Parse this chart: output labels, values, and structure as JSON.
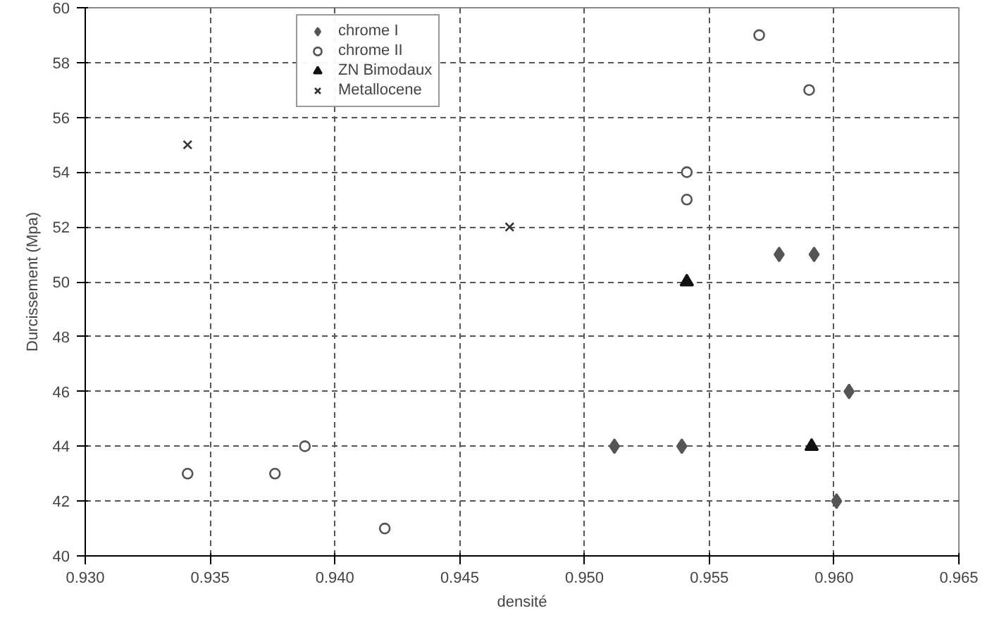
{
  "chart_data": {
    "type": "scatter",
    "xlabel": "densité",
    "ylabel": "Durcissement (Mpa)",
    "xlim": [
      0.93,
      0.965
    ],
    "xticks": [
      {
        "value": 0.93,
        "label": "0.930"
      },
      {
        "value": 0.935,
        "label": "0.935"
      },
      {
        "value": 0.94,
        "label": "0.940"
      },
      {
        "value": 0.945,
        "label": "0.945"
      },
      {
        "value": 0.95,
        "label": "0.950"
      },
      {
        "value": 0.955,
        "label": "0.955"
      },
      {
        "value": 0.96,
        "label": "0.960"
      },
      {
        "value": 0.965,
        "label": "0.965"
      }
    ],
    "ylim": [
      40,
      60
    ],
    "yticks": [
      40,
      42,
      44,
      46,
      48,
      50,
      52,
      54,
      56,
      58,
      60
    ],
    "grid": true,
    "legend": "top left",
    "series": [
      {
        "name": "chrome I",
        "marker": "diamond",
        "color": "#555555",
        "x": [
          0.9512,
          0.9539,
          0.9578,
          0.9592,
          0.9606,
          0.9601
        ],
        "values": [
          44,
          44,
          51,
          51,
          46,
          42
        ]
      },
      {
        "name": "chrome II",
        "marker": "circle",
        "color": "#555555",
        "x": [
          0.9341,
          0.9376,
          0.9388,
          0.942,
          0.9541,
          0.9541,
          0.957,
          0.959
        ],
        "values": [
          43,
          43,
          44,
          41,
          54,
          53,
          59,
          57
        ]
      },
      {
        "name": "ZN Bimodaux",
        "marker": "triangle",
        "color": "#111111",
        "x": [
          0.9541,
          0.9591
        ],
        "values": [
          50,
          44
        ]
      },
      {
        "name": "Metallocene",
        "marker": "cross",
        "color": "#333333",
        "x": [
          0.9341,
          0.947
        ],
        "values": [
          55,
          52
        ]
      }
    ]
  }
}
